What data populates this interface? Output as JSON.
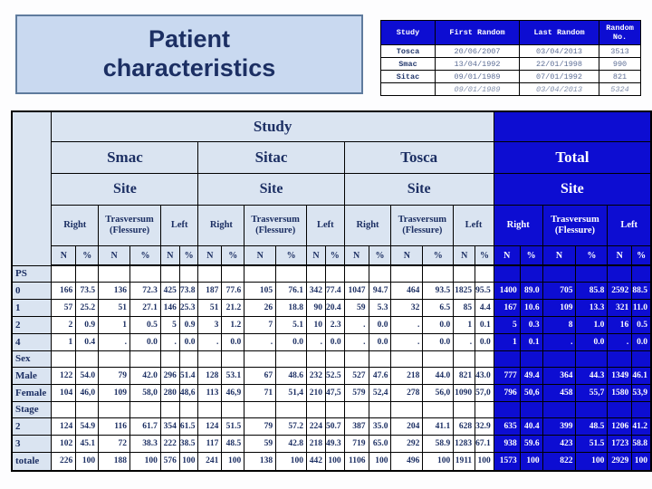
{
  "title": {
    "line1": "Patient",
    "line2": "characteristics"
  },
  "random_table": {
    "headers": [
      "Study",
      "First Random",
      "Last Random",
      "Random No."
    ],
    "rows": [
      {
        "cells": [
          "Tosca",
          "20/06/2007",
          "03/04/2013",
          "3513"
        ],
        "total": false
      },
      {
        "cells": [
          "Smac",
          "13/04/1992",
          "22/01/1998",
          "990"
        ],
        "total": false
      },
      {
        "cells": [
          "Sitac",
          "09/01/1989",
          "07/01/1992",
          "821"
        ],
        "total": false
      },
      {
        "cells": [
          "",
          "09/01/1989",
          "03/04/2013",
          "5324"
        ],
        "total": true
      }
    ]
  },
  "main_table": {
    "study_header": "Study",
    "site_header": "Site",
    "groups": [
      "Smac",
      "Sitac",
      "Tosca",
      "Total"
    ],
    "site_cols": [
      "Right",
      "Trasversum (Flessure)",
      "Left"
    ],
    "n_label": "N",
    "pct_label": "%",
    "rows": [
      {
        "label": "PS",
        "section": true,
        "cells": []
      },
      {
        "label": "0",
        "section": false,
        "cells": [
          "166",
          "73.5",
          "136",
          "72.3",
          "425",
          "73.8",
          "187",
          "77.6",
          "105",
          "76.1",
          "342",
          "77.4",
          "1047",
          "94.7",
          "464",
          "93.5",
          "1825",
          "95.5",
          "1400",
          "89.0",
          "705",
          "85.8",
          "2592",
          "88.5"
        ]
      },
      {
        "label": "1",
        "section": false,
        "cells": [
          "57",
          "25.2",
          "51",
          "27.1",
          "146",
          "25.3",
          "51",
          "21.2",
          "26",
          "18.8",
          "90",
          "20.4",
          "59",
          "5.3",
          "32",
          "6.5",
          "85",
          "4.4",
          "167",
          "10.6",
          "109",
          "13.3",
          "321",
          "11.0"
        ]
      },
      {
        "label": "2",
        "section": false,
        "cells": [
          "2",
          "0.9",
          "1",
          "0.5",
          "5",
          "0.9",
          "3",
          "1.2",
          "7",
          "5.1",
          "10",
          "2.3",
          ".",
          "0.0",
          ".",
          "0.0",
          "1",
          "0.1",
          "5",
          "0.3",
          "8",
          "1.0",
          "16",
          "0.5"
        ]
      },
      {
        "label": "4",
        "section": false,
        "cells": [
          "1",
          "0.4",
          ".",
          "0.0",
          ".",
          "0.0",
          ".",
          "0.0",
          ".",
          "0.0",
          ".",
          "0.0",
          ".",
          "0.0",
          ".",
          "0.0",
          ".",
          "0.0",
          "1",
          "0.1",
          ".",
          "0.0",
          ".",
          "0.0"
        ]
      },
      {
        "label": "Sex",
        "section": true,
        "cells": []
      },
      {
        "label": "Male",
        "section": false,
        "cells": [
          "122",
          "54.0",
          "79",
          "42.0",
          "296",
          "51.4",
          "128",
          "53.1",
          "67",
          "48.6",
          "232",
          "52.5",
          "527",
          "47.6",
          "218",
          "44.0",
          "821",
          "43.0",
          "777",
          "49.4",
          "364",
          "44.3",
          "1349",
          "46.1"
        ]
      },
      {
        "label": "Female",
        "section": false,
        "cells": [
          "104",
          "46,0",
          "109",
          "58,0",
          "280",
          "48,6",
          "113",
          "46,9",
          "71",
          "51,4",
          "210",
          "47,5",
          "579",
          "52,4",
          "278",
          "56,0",
          "1090",
          "57,0",
          "796",
          "50,6",
          "458",
          "55,7",
          "1580",
          "53,9"
        ]
      },
      {
        "label": "Stage",
        "section": true,
        "cells": []
      },
      {
        "label": "2",
        "section": false,
        "cells": [
          "124",
          "54.9",
          "116",
          "61.7",
          "354",
          "61.5",
          "124",
          "51.5",
          "79",
          "57.2",
          "224",
          "50.7",
          "387",
          "35.0",
          "204",
          "41.1",
          "628",
          "32.9",
          "635",
          "40.4",
          "399",
          "48.5",
          "1206",
          "41.2"
        ]
      },
      {
        "label": "3",
        "section": false,
        "cells": [
          "102",
          "45.1",
          "72",
          "38.3",
          "222",
          "38.5",
          "117",
          "48.5",
          "59",
          "42.8",
          "218",
          "49.3",
          "719",
          "65.0",
          "292",
          "58.9",
          "1283",
          "67.1",
          "938",
          "59.6",
          "423",
          "51.5",
          "1723",
          "58.8"
        ]
      },
      {
        "label": "totale",
        "section": false,
        "last": true,
        "cells": [
          "226",
          "100",
          "188",
          "100",
          "576",
          "100",
          "241",
          "100",
          "138",
          "100",
          "442",
          "100",
          "1106",
          "100",
          "496",
          "100",
          "1911",
          "100",
          "1573",
          "100",
          "822",
          "100",
          "2929",
          "100"
        ]
      }
    ]
  },
  "colors": {
    "total_block_blue": "#0d0dd2",
    "header_light_blue": "#dae4f1",
    "title_box_blue": "#c9d9f0",
    "navy_text": "#1c2f63"
  }
}
